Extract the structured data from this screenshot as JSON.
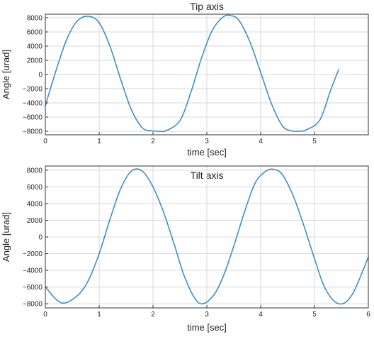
{
  "chart_data": [
    {
      "type": "line",
      "title": "Tip axis",
      "xlabel": "time [sec]",
      "ylabel": "Angle [urad]",
      "xlim": [
        0,
        6
      ],
      "ylim": [
        -8500,
        8500
      ],
      "grid": true,
      "xticks": [
        0,
        1,
        2,
        3,
        4,
        5
      ],
      "yticks": [
        -8000,
        -6000,
        -4000,
        -2000,
        0,
        2000,
        4000,
        6000,
        8000
      ],
      "color": "#3d8fc4",
      "series": [
        {
          "x": [
            0,
            0.2,
            0.4,
            0.6,
            0.8,
            1.0,
            1.2,
            1.4,
            1.6,
            1.8,
            1.95,
            2.1,
            2.25,
            2.5,
            2.7,
            2.9,
            3.1,
            3.3,
            3.45,
            3.6,
            3.8,
            4.0,
            4.2,
            4.4,
            4.55,
            4.7,
            4.85,
            5.1,
            5.3,
            5.45
          ],
          "y": [
            -4400,
            600,
            5000,
            7600,
            8200,
            7300,
            4000,
            -700,
            -5000,
            -7500,
            -7900,
            -8000,
            -7900,
            -6500,
            -2600,
            2300,
            6200,
            8100,
            8300,
            7600,
            4600,
            300,
            -4100,
            -7200,
            -7900,
            -8000,
            -7800,
            -6400,
            -2200,
            700
          ]
        }
      ]
    },
    {
      "type": "line",
      "title": "Tilt axis",
      "xlabel": "time [sec]",
      "ylabel": "Angle [urad]",
      "xlim": [
        0,
        6
      ],
      "ylim": [
        -8500,
        8500
      ],
      "grid": true,
      "xticks": [
        0,
        1,
        2,
        3,
        4,
        5,
        6
      ],
      "yticks": [
        -8000,
        -6000,
        -4000,
        -2000,
        0,
        2000,
        4000,
        6000,
        8000
      ],
      "color": "#3d8fc4",
      "series": [
        {
          "x": [
            0,
            0.3,
            0.6,
            0.8,
            1.0,
            1.2,
            1.4,
            1.6,
            1.8,
            2.0,
            2.2,
            2.4,
            2.6,
            2.85,
            3.1,
            3.3,
            3.5,
            3.7,
            3.9,
            4.1,
            4.25,
            4.4,
            4.6,
            4.8,
            5.0,
            5.2,
            5.45,
            5.7,
            6.0
          ],
          "y": [
            -6000,
            -7900,
            -7000,
            -5200,
            -2000,
            2100,
            5800,
            7900,
            7900,
            6000,
            2900,
            -1000,
            -5000,
            -7900,
            -7200,
            -4800,
            -1100,
            3000,
            6500,
            7900,
            8100,
            7500,
            5000,
            1400,
            -2600,
            -6200,
            -8000,
            -6900,
            -2400
          ]
        }
      ]
    }
  ]
}
